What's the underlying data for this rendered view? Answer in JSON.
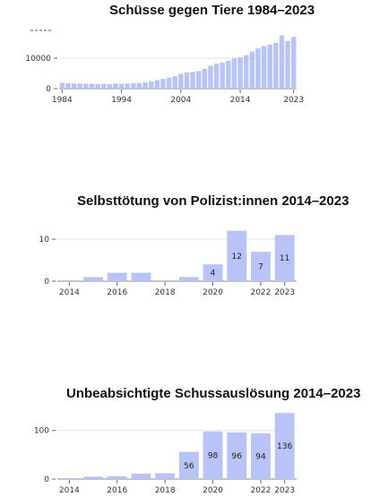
{
  "chart_data": [
    {
      "type": "bar",
      "title": "Schüsse gegen Tiere 1984–2023",
      "x": [
        1984,
        1985,
        1986,
        1987,
        1988,
        1989,
        1990,
        1991,
        1992,
        1993,
        1994,
        1995,
        1996,
        1997,
        1998,
        1999,
        2000,
        2001,
        2002,
        2003,
        2004,
        2005,
        2006,
        2007,
        2008,
        2009,
        2010,
        2011,
        2012,
        2013,
        2014,
        2015,
        2016,
        2017,
        2018,
        2019,
        2020,
        2021,
        2022,
        2023
      ],
      "values": [
        1900,
        1800,
        1700,
        1700,
        1600,
        1600,
        1500,
        1600,
        1500,
        1700,
        1600,
        1700,
        1800,
        1900,
        2100,
        2400,
        2800,
        3200,
        3600,
        4100,
        4900,
        5300,
        5500,
        5800,
        6500,
        7500,
        8200,
        8600,
        9200,
        9900,
        10300,
        11000,
        12200,
        13300,
        14000,
        14500,
        15000,
        17500,
        15700,
        17000
      ],
      "xticks": [
        1984,
        1994,
        2004,
        2014,
        2023
      ],
      "yticks": [
        0,
        10000
      ],
      "ylim": [
        0,
        20000
      ],
      "ylabel": "",
      "xlabel": "",
      "color": "#b8c4f8"
    },
    {
      "type": "bar",
      "title": "Selbsttötung von Polizist:innen 2014–2023",
      "x": [
        2014,
        2015,
        2016,
        2017,
        2018,
        2019,
        2020,
        2021,
        2022,
        2023
      ],
      "values": [
        0,
        1,
        2,
        2,
        0,
        1,
        4,
        12,
        7,
        11
      ],
      "data_labels": [
        "",
        "",
        "",
        "",
        "",
        "",
        "4",
        "12",
        "7",
        "11"
      ],
      "xticks": [
        2014,
        2016,
        2018,
        2020,
        2022,
        2023
      ],
      "yticks": [
        0,
        10
      ],
      "ylim": [
        0,
        13
      ],
      "ylabel": "",
      "xlabel": "",
      "color": "#b8c4f8"
    },
    {
      "type": "bar",
      "title": "Unbeabsichtigte Schussauslösung 2014–2023",
      "x": [
        2014,
        2015,
        2016,
        2017,
        2018,
        2019,
        2020,
        2021,
        2022,
        2023
      ],
      "values": [
        2,
        5,
        6,
        11,
        12,
        56,
        98,
        96,
        94,
        136
      ],
      "data_labels": [
        "",
        "",
        "",
        "",
        "",
        "56",
        "98",
        "96",
        "94",
        "136"
      ],
      "xticks": [
        2014,
        2016,
        2018,
        2020,
        2022,
        2023
      ],
      "yticks": [
        0,
        100
      ],
      "ylim": [
        0,
        140
      ],
      "ylabel": "",
      "xlabel": "",
      "color": "#b8c4f8"
    }
  ]
}
